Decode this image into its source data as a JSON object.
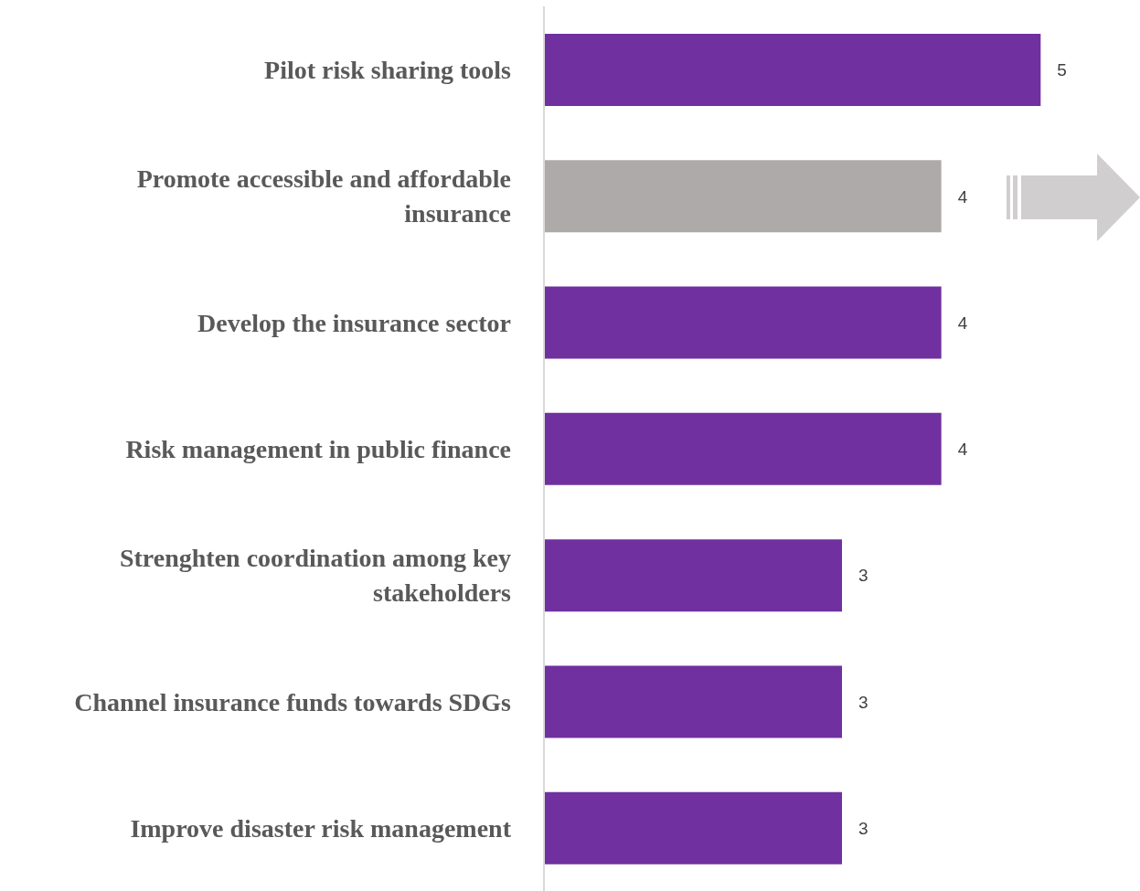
{
  "chart_data": {
    "type": "bar",
    "orientation": "horizontal",
    "categories": [
      "Pilot risk sharing tools",
      "Promote accessible and affordable insurance",
      "Develop the insurance sector",
      "Risk management in public finance",
      "Strenghten coordination among key stakeholders",
      "Channel insurance funds towards SDGs",
      "Improve disaster risk management"
    ],
    "values": [
      5,
      4,
      4,
      4,
      3,
      3,
      3
    ],
    "colors": [
      "#7030a0",
      "#aeaaaa",
      "#7030a0",
      "#7030a0",
      "#7030a0",
      "#7030a0",
      "#7030a0"
    ],
    "xlim": [
      0,
      6
    ],
    "tick_labels": "y",
    "data_labels": true,
    "grid": false
  }
}
